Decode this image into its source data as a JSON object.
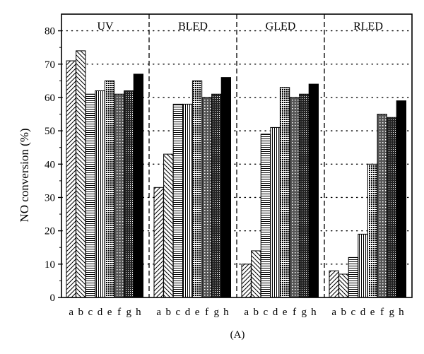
{
  "chart_data": {
    "type": "bar",
    "caption": "(A)",
    "ylabel": "NO conversion (%)",
    "xlabel": "",
    "ylim": [
      0,
      85
    ],
    "yticks": [
      0,
      10,
      20,
      30,
      40,
      50,
      60,
      70,
      80
    ],
    "grid": "dotted horizontal lines at major y ticks",
    "panels": [
      "UV",
      "BLED",
      "GLED",
      "RLED"
    ],
    "categories": [
      "a",
      "b",
      "c",
      "d",
      "e",
      "f",
      "g",
      "h"
    ],
    "category_patterns": [
      "diag-up",
      "diag-down",
      "horizontal",
      "vertical",
      "dense-dots",
      "crosshatch",
      "fine-grid",
      "solid"
    ],
    "accent_color": "#000000",
    "series": [
      {
        "values": [
          71,
          74,
          61,
          62,
          65,
          61,
          62,
          67
        ]
      },
      {
        "values": [
          33,
          43,
          58,
          58,
          65,
          60,
          61,
          66
        ]
      },
      {
        "values": [
          10,
          14,
          49,
          51,
          63,
          60,
          61,
          64
        ]
      },
      {
        "values": [
          8,
          7,
          12,
          19,
          40,
          55,
          54,
          59
        ]
      }
    ]
  }
}
